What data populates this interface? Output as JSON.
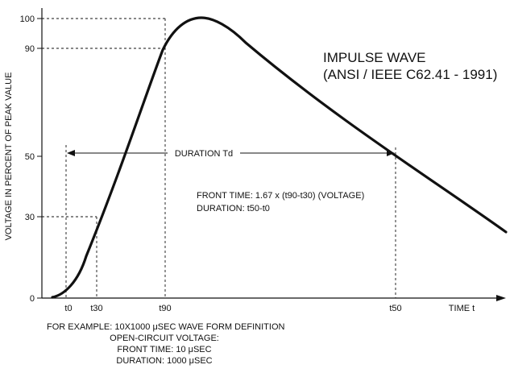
{
  "title_line1": "IMPULSE WAVE",
  "title_line2": "(ANSI / IEEE C62.41 - 1991)",
  "y_axis_label": "VOLTAGE IN PERCENT OF PEAK VALUE",
  "y_ticks": [
    "100",
    "90",
    "50",
    "30",
    "0"
  ],
  "x_ticks": [
    "t0",
    "t30",
    "t90",
    "t50"
  ],
  "x_axis_label": "TIME t",
  "duration_label": "DURATION Td",
  "formula_line1": "FRONT TIME: 1.67 x (t90-t30)  (VOLTAGE)",
  "formula_line2": "DURATION: t50-t0",
  "example_line1": "FOR EXAMPLE: 10X1000 μSEC WAVE FORM DEFINITION",
  "example_line2": "OPEN-CIRCUIT VOLTAGE:",
  "example_line3": "FRONT TIME: 10 μSEC",
  "example_line4": "DURATION: 1000 μSEC",
  "colors": {
    "ink": "#111111",
    "background": "#ffffff"
  }
}
